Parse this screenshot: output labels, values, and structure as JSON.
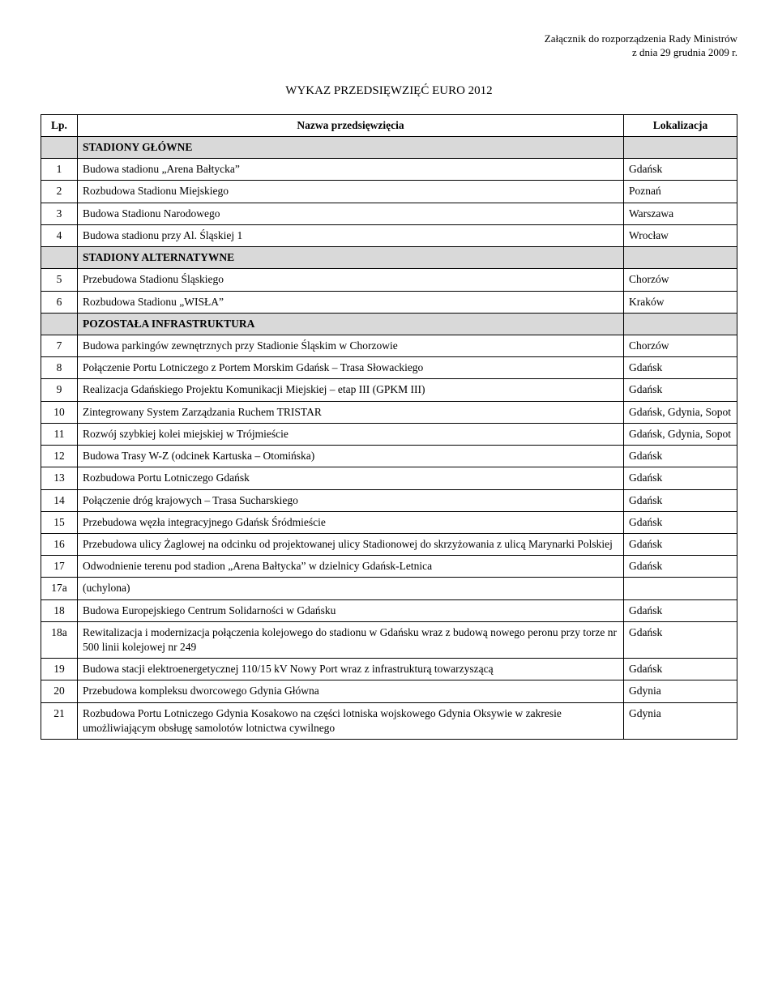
{
  "attachment_line1": "Załącznik do rozporządzenia Rady Ministrów",
  "attachment_line2": "z dnia 29 grudnia 2009 r.",
  "title": "WYKAZ PRZEDSIĘWZIĘĆ EURO 2012",
  "headers": {
    "lp": "Lp.",
    "name": "Nazwa przedsięwzięcia",
    "loc": "Lokalizacja"
  },
  "sections": {
    "s1": "STADIONY GŁÓWNE",
    "s2": "STADIONY ALTERNATYWNE",
    "s3": "POZOSTAŁA INFRASTRUKTURA"
  },
  "rows": {
    "r1": {
      "lp": "1",
      "name": "Budowa stadionu „Arena Bałtycka”",
      "loc": "Gdańsk"
    },
    "r2": {
      "lp": "2",
      "name": "Rozbudowa Stadionu Miejskiego",
      "loc": "Poznań"
    },
    "r3": {
      "lp": "3",
      "name": "Budowa Stadionu Narodowego",
      "loc": "Warszawa"
    },
    "r4": {
      "lp": "4",
      "name": "Budowa stadionu przy Al. Śląskiej 1",
      "loc": "Wrocław"
    },
    "r5": {
      "lp": "5",
      "name": "Przebudowa Stadionu Śląskiego",
      "loc": "Chorzów"
    },
    "r6": {
      "lp": "6",
      "name": "Rozbudowa Stadionu „WISŁA”",
      "loc": "Kraków"
    },
    "r7": {
      "lp": "7",
      "name": "Budowa parkingów zewnętrznych przy Stadionie Śląskim w Chorzowie",
      "loc": "Chorzów"
    },
    "r8": {
      "lp": "8",
      "name": "Połączenie Portu Lotniczego z Portem Morskim Gdańsk – Trasa Słowackiego",
      "loc": "Gdańsk"
    },
    "r9": {
      "lp": "9",
      "name": "Realizacja Gdańskiego Projektu Komunikacji Miejskiej – etap III (GPKM III)",
      "loc": "Gdańsk"
    },
    "r10": {
      "lp": "10",
      "name": "Zintegrowany System Zarządzania Ruchem TRISTAR",
      "loc": "Gdańsk, Gdynia, Sopot"
    },
    "r11": {
      "lp": "11",
      "name": "Rozwój szybkiej kolei miejskiej w Trójmieście",
      "loc": "Gdańsk, Gdynia, Sopot"
    },
    "r12": {
      "lp": "12",
      "name": "Budowa Trasy W-Z (odcinek Kartuska – Otomińska)",
      "loc": "Gdańsk"
    },
    "r13": {
      "lp": "13",
      "name": "Rozbudowa Portu Lotniczego Gdańsk",
      "loc": "Gdańsk"
    },
    "r14": {
      "lp": "14",
      "name": "Połączenie dróg krajowych – Trasa Sucharskiego",
      "loc": "Gdańsk"
    },
    "r15": {
      "lp": "15",
      "name": "Przebudowa węzła integracyjnego Gdańsk Śródmieście",
      "loc": "Gdańsk"
    },
    "r16": {
      "lp": "16",
      "name": "Przebudowa ulicy Żaglowej na odcinku od projektowanej ulicy Stadionowej do skrzyżowania z ulicą Marynarki Polskiej",
      "loc": "Gdańsk"
    },
    "r17": {
      "lp": "17",
      "name": "Odwodnienie terenu pod stadion „Arena Bałtycka” w dzielnicy Gdańsk-Letnica",
      "loc": "Gdańsk"
    },
    "r17a": {
      "lp": "17a",
      "name": "(uchylona)",
      "loc": ""
    },
    "r18": {
      "lp": "18",
      "name": "Budowa Europejskiego Centrum Solidarności w Gdańsku",
      "loc": "Gdańsk"
    },
    "r18a": {
      "lp": "18a",
      "name": "Rewitalizacja i modernizacja połączenia kolejowego do stadionu w Gdańsku wraz z budową nowego peronu przy torze nr 500 linii kolejowej nr 249",
      "loc": "Gdańsk"
    },
    "r19": {
      "lp": "19",
      "name": "Budowa stacji elektroenergetycznej 110/15 kV Nowy Port wraz z infrastrukturą towarzyszącą",
      "loc": "Gdańsk"
    },
    "r20": {
      "lp": "20",
      "name": "Przebudowa kompleksu dworcowego Gdynia Główna",
      "loc": "Gdynia"
    },
    "r21": {
      "lp": "21",
      "name": "Rozbudowa Portu Lotniczego Gdynia Kosakowo na części lotniska wojskowego Gdynia Oksywie w zakresie umożliwiającym obsługę samolotów lotnictwa cywilnego",
      "loc": "Gdynia"
    }
  }
}
